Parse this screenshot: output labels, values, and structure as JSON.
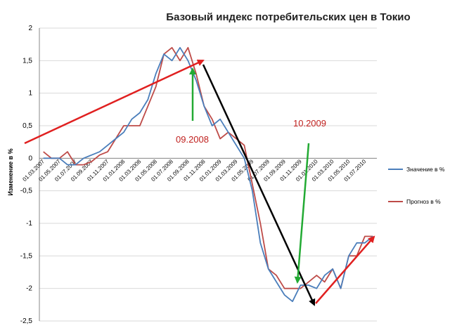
{
  "chart_data": {
    "type": "line",
    "title": "Базовый индекс потребительских цен в Токио",
    "xlabel": "",
    "ylabel": "Изменение в %",
    "ylim": [
      -2.5,
      2
    ],
    "yticks": [
      2,
      1.5,
      1,
      0.5,
      0,
      -0.5,
      -1,
      -1.5,
      -2,
      -2.5
    ],
    "ytick_labels": [
      "2",
      "1,5",
      "1",
      "0,5",
      "0",
      "-0,5",
      "-1",
      "-1,5",
      "-2",
      "-2,5"
    ],
    "grid": "horizontal",
    "legend_position": "right",
    "x": [
      "01.03.2007",
      "01.04.2007",
      "01.05.2007",
      "01.06.2007",
      "01.07.2007",
      "01.08.2007",
      "01.09.2007",
      "01.10.2007",
      "01.11.2007",
      "01.12.2007",
      "01.01.2008",
      "01.02.2008",
      "01.03.2008",
      "01.04.2008",
      "01.05.2008",
      "01.06.2008",
      "01.07.2008",
      "01.08.2008",
      "01.09.2008",
      "01.10.2008",
      "01.11.2008",
      "01.12.2008",
      "01.01.2009",
      "01.02.2009",
      "01.03.2009",
      "01.04.2009",
      "01.05.2009",
      "01.06.2009",
      "01.07.2009",
      "01.08.2009",
      "01.09.2009",
      "01.10.2009",
      "01.11.2009",
      "01.12.2009",
      "01.01.2010",
      "01.02.2010",
      "01.03.2010",
      "01.04.2010",
      "01.05.2010",
      "01.06.2010",
      "01.07.2010",
      "01.08.2010"
    ],
    "x_tick_labels": [
      "01.03.2007",
      "01.05.2007",
      "01.07.2007",
      "01.09.2007",
      "01.11.2007",
      "01.01.2008",
      "01.03.2008",
      "01.05.2008",
      "01.07.2008",
      "01.09.2008",
      "01.11.2008",
      "01.01.2009",
      "01.03.2009",
      "01.05.2009",
      "01.07.2009",
      "01.09.2009",
      "01.11.2009",
      "01.01.2010",
      "01.03.2010",
      "01.05.2010",
      "01.07.2010"
    ],
    "series": [
      {
        "name": "Значение  в %",
        "color": "#4a7ebb",
        "values": [
          0,
          0,
          0,
          -0.1,
          -0.1,
          0,
          0.05,
          0.1,
          0.2,
          0.3,
          0.4,
          0.6,
          0.7,
          0.9,
          1.3,
          1.6,
          1.5,
          1.7,
          1.5,
          1.2,
          0.8,
          0.5,
          0.6,
          0.4,
          0.2,
          0,
          -0.5,
          -1.3,
          -1.7,
          -1.9,
          -2.1,
          -2.2,
          -1.95,
          -1.95,
          -2.0,
          -1.8,
          -1.7,
          -2.0,
          -1.5,
          -1.3,
          -1.3,
          -1.2
        ]
      },
      {
        "name": "Прогноз в %",
        "color": "#be4b48",
        "values": [
          0.1,
          0,
          0,
          0.1,
          -0.1,
          -0.1,
          -0.05,
          0.05,
          0.1,
          0.3,
          0.5,
          0.5,
          0.5,
          0.8,
          1.1,
          1.6,
          1.7,
          1.5,
          1.7,
          1.3,
          0.8,
          0.6,
          0.3,
          0.4,
          0.3,
          0.2,
          -0.4,
          -1.0,
          -1.7,
          -1.8,
          -2.0,
          -2.0,
          -2.0,
          -1.9,
          -1.8,
          -1.9,
          -1.7,
          -2.0,
          -1.5,
          -1.5,
          -1.2,
          -1.2
        ]
      }
    ],
    "annotations": [
      {
        "text": "09.2008",
        "color": "#c0201e"
      },
      {
        "text": "10.2009",
        "color": "#c0201e"
      }
    ],
    "arrow_colors": {
      "red": "#e02020",
      "black": "#000000",
      "green": "#22aa33"
    }
  }
}
